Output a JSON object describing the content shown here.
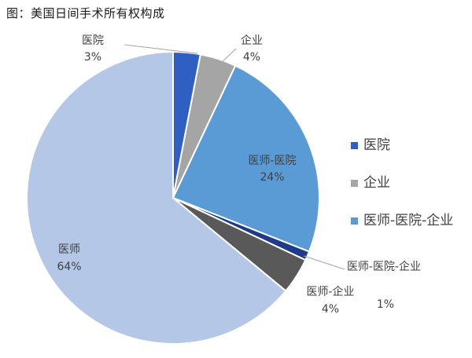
{
  "chart_data": {
    "type": "pie",
    "title": "图：美国日间手术所有权构成",
    "series": [
      {
        "name": "医院",
        "value": 3,
        "label": "3%",
        "color": "#2E5FC1"
      },
      {
        "name": "企业",
        "value": 4,
        "label": "4%",
        "color": "#A5A5A5"
      },
      {
        "name": "医师-医院",
        "value": 24,
        "label": "24%",
        "color": "#5B9BD5"
      },
      {
        "name": "医师-医院-企业",
        "value": 1,
        "label": "1%",
        "color": "#1F3A8A"
      },
      {
        "name": "医师-企业",
        "value": 4,
        "label": "4%",
        "color": "#595959"
      },
      {
        "name": "医师",
        "value": 64,
        "label": "64%",
        "color": "#B4C7E7"
      }
    ],
    "legend": {
      "placement": "right",
      "entries": [
        "医院",
        "企业",
        "医师-医院-企业"
      ]
    }
  }
}
